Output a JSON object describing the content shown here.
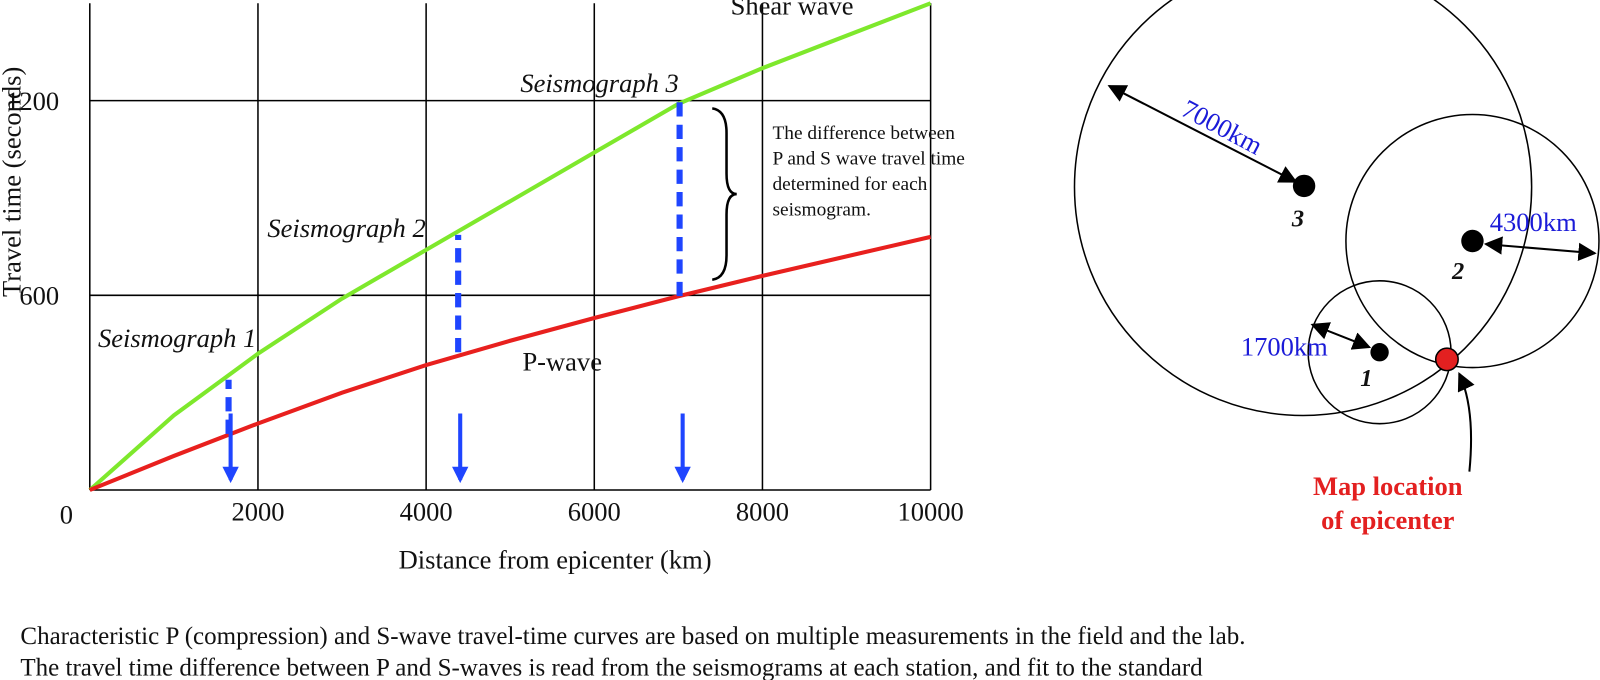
{
  "chart_data": {
    "type": "line",
    "x": [
      0,
      1000,
      2000,
      3000,
      4000,
      5000,
      6000,
      7000,
      8000,
      9000,
      10000
    ],
    "series": [
      {
        "name": "Shear wave",
        "color": "#7ee82c",
        "values": [
          0,
          230,
          420,
          590,
          740,
          890,
          1040,
          1190,
          1300,
          1400,
          1500
        ]
      },
      {
        "name": "P-wave",
        "color": "#e8201e",
        "values": [
          0,
          105,
          205,
          300,
          385,
          460,
          530,
          597,
          660,
          720,
          780
        ]
      }
    ],
    "xlim": [
      0,
      10000
    ],
    "xticks": [
      2000,
      4000,
      6000,
      8000,
      10000
    ],
    "ylim": [
      0,
      1500
    ],
    "yticks": [
      0,
      600,
      1200
    ],
    "grid": true,
    "xlabel": "Distance from epicenter (km)",
    "ylabel": "Travel time (seconds)",
    "annotations": [
      "Seismograph 1",
      "Seismograph 2",
      "Seismograph 3"
    ],
    "note": [
      "The difference between",
      "P and S wave travel time",
      "determined for each",
      "seismogram."
    ]
  },
  "diagram": {
    "distances": [
      "7000km",
      "4300km",
      "1700km"
    ],
    "stations": [
      "3",
      "2",
      "1"
    ],
    "epicenter": [
      "Map location",
      "of epicenter"
    ]
  },
  "caption": [
    "Characteristic P (compression) and S-wave travel-time curves are based on multiple measurements in the field and the lab.",
    "The travel time difference between P and S-waves is read from the seismograms at each station, and fit to the standard"
  ]
}
